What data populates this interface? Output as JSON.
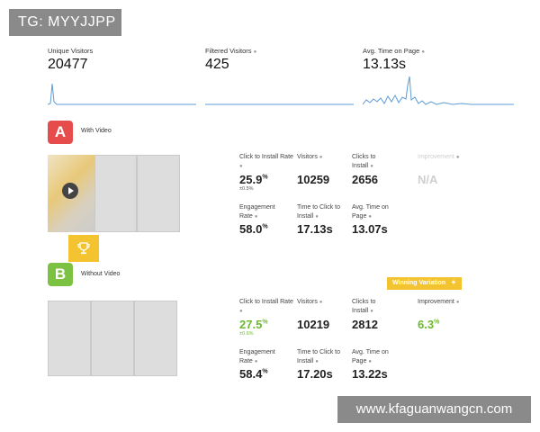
{
  "overlay": {
    "tag": "TG: MYYJJPP",
    "url": "www.kfaguanwangcn.com"
  },
  "summary": [
    {
      "label": "Unique Visitors",
      "value": "20477"
    },
    {
      "label": "Filtered Visitors",
      "value": "425"
    },
    {
      "label": "Avg. Time on Page",
      "value": "13.13s"
    }
  ],
  "variants": [
    {
      "badge": "A",
      "name": "With Video",
      "color": "#e74c4c",
      "metrics": {
        "ctr_label": "Click to Install Rate",
        "ctr_value": "25.9",
        "ctr_unit": "%",
        "ctr_margin": "±0.5%",
        "visitors_label": "Visitors",
        "visitors_value": "10259",
        "clicks_label": "Clicks to Install",
        "clicks_value": "2656",
        "improvement_label": "Improvement",
        "improvement_value": "N/A",
        "engagement_label": "Engagement Rate",
        "engagement_value": "58.0",
        "engagement_unit": "%",
        "ttc_label": "Time to Click to Install",
        "ttc_value": "17.13s",
        "avgtime_label": "Avg. Time on Page",
        "avgtime_value": "13.07s"
      }
    },
    {
      "badge": "B",
      "name": "Without Video",
      "color": "#7cc242",
      "winning_label": "Winning Variation",
      "metrics": {
        "ctr_label": "Click to Install Rate",
        "ctr_value": "27.5",
        "ctr_unit": "%",
        "ctr_margin": "±0.6%",
        "visitors_label": "Visitors",
        "visitors_value": "10219",
        "clicks_label": "Clicks to Install",
        "clicks_value": "2812",
        "improvement_label": "Improvement",
        "improvement_value": "6.3",
        "improvement_unit": "%",
        "engagement_label": "Engagement Rate",
        "engagement_value": "58.4",
        "engagement_unit": "%",
        "ttc_label": "Time to Click to Install",
        "ttc_value": "17.20s",
        "avgtime_label": "Avg. Time on Page",
        "avgtime_value": "13.22s"
      }
    }
  ],
  "colors": {
    "accent_yellow": "#f4c430",
    "sparkline": "#5b9bd5",
    "green": "#6cb92e"
  }
}
